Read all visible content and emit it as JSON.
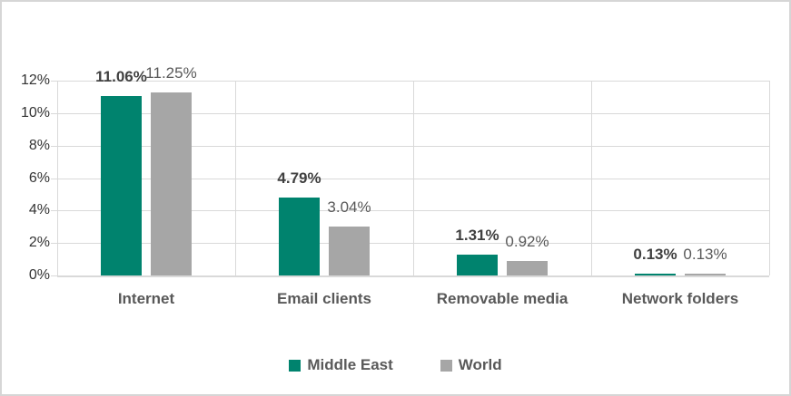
{
  "chart_data": {
    "type": "bar",
    "title": "",
    "categories": [
      "Internet",
      "Email clients",
      "Removable media",
      "Network folders"
    ],
    "series": [
      {
        "name": "Middle East",
        "color": "#00836E",
        "values": [
          11.06,
          4.79,
          1.31,
          0.13
        ],
        "data_labels": [
          "11.06%",
          "4.79%",
          "1.31%",
          "0.13%"
        ]
      },
      {
        "name": "World",
        "color": "#A6A6A6",
        "values": [
          11.25,
          3.04,
          0.92,
          0.13
        ],
        "data_labels": [
          "11.25%",
          "3.04%",
          "0.92%",
          "0.13%"
        ]
      }
    ],
    "y_axis": {
      "min": 0,
      "max": 12,
      "step": 2,
      "tick_labels": [
        "0%",
        "2%",
        "4%",
        "6%",
        "8%",
        "10%",
        "12%"
      ]
    },
    "grid": true,
    "legend_position": "bottom"
  },
  "colors": {
    "series_middle_east": "#00836E",
    "series_world": "#A6A6A6",
    "gridline": "#D9D9D9",
    "frame_border": "#D6D6D6",
    "axis_text": "#333333",
    "category_text": "#595959",
    "data_label_bold": "#404040",
    "data_label_regular": "#595959"
  }
}
